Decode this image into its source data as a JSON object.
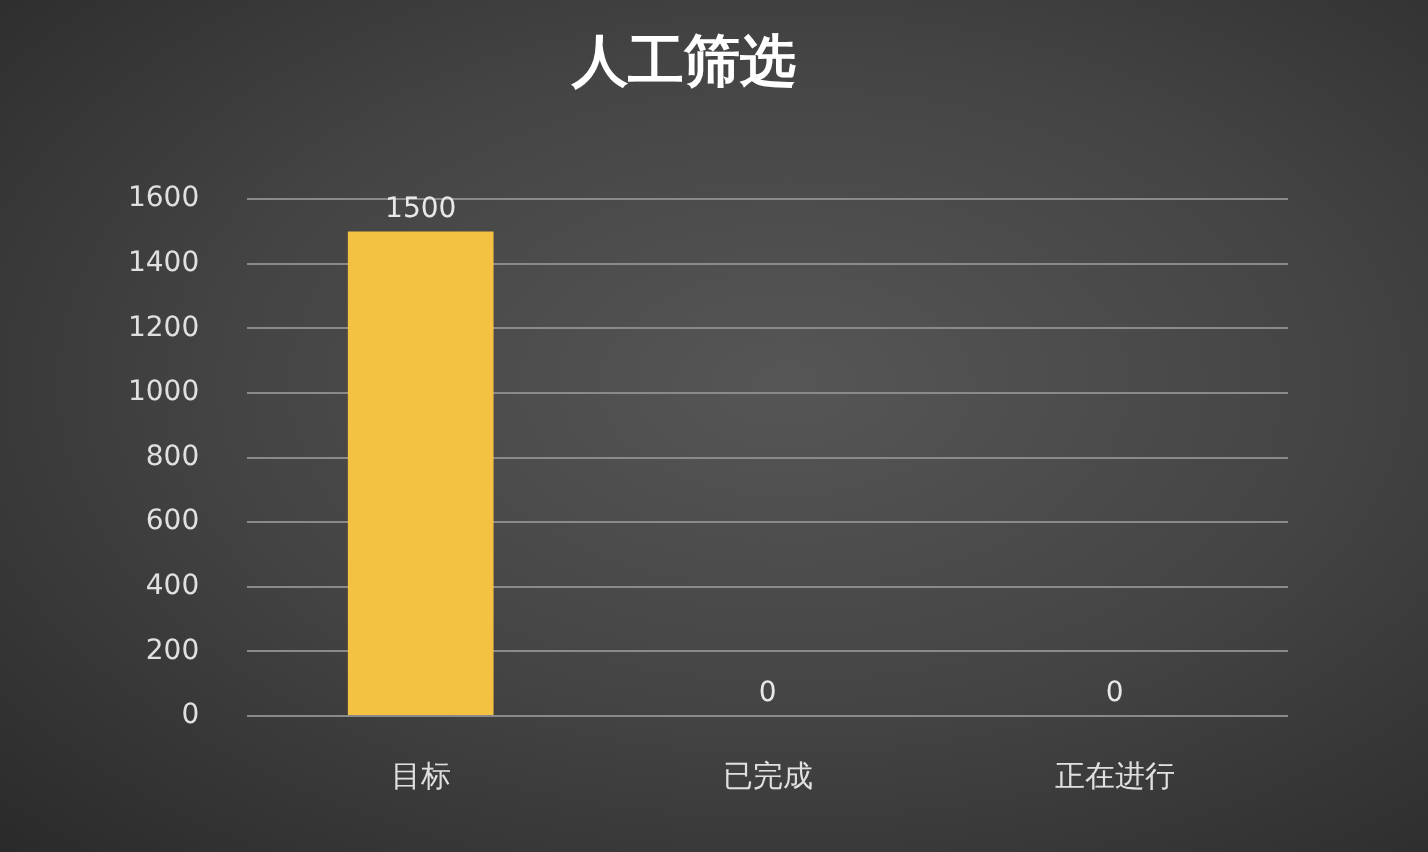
{
  "chart_data": {
    "type": "bar",
    "title": "人工筛选",
    "categories": [
      "目标",
      "已完成",
      "正在进行"
    ],
    "values": [
      1500,
      0,
      0
    ],
    "color": "#f4c242",
    "ylim": [
      0,
      1600
    ],
    "yticks": [
      0,
      200,
      400,
      600,
      800,
      1000,
      1200,
      1400,
      1600
    ],
    "grid": true,
    "data_labels": true
  }
}
